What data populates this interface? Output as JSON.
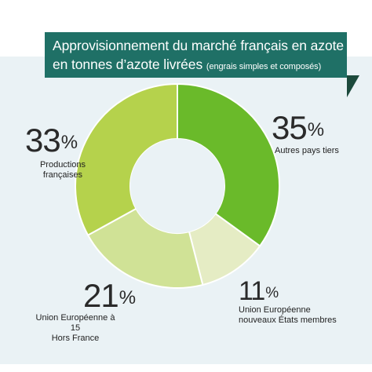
{
  "title": {
    "line1": "Approvisionnement du marché français en azote",
    "line2_main": "en tonnes d’azote livrées",
    "line2_sub": "(engrais simples et composés)"
  },
  "colors": {
    "title_bg": "#1f7066",
    "panel_bg": "#eaf2f5",
    "fold": "#1c4a3c"
  },
  "chart_data": {
    "type": "pie",
    "variant": "donut",
    "start_angle_deg": 0,
    "direction": "clockwise",
    "slices": [
      {
        "value": 35,
        "pct_label": "35",
        "label_lines": [
          "Autres pays tiers"
        ],
        "color": "#6aba2a"
      },
      {
        "value": 11,
        "pct_label": "11",
        "label_lines": [
          "Union Européenne",
          "nouveaux États membres"
        ],
        "color": "#e5ecc4"
      },
      {
        "value": 21,
        "pct_label": "21",
        "label_lines": [
          "Union Européenne à 15",
          "Hors France"
        ],
        "color": "#d0e296"
      },
      {
        "value": 33,
        "pct_label": "33",
        "label_lines": [
          "Productions",
          "françaises"
        ],
        "color": "#b5d24c"
      }
    ],
    "percent_symbol": "%"
  }
}
